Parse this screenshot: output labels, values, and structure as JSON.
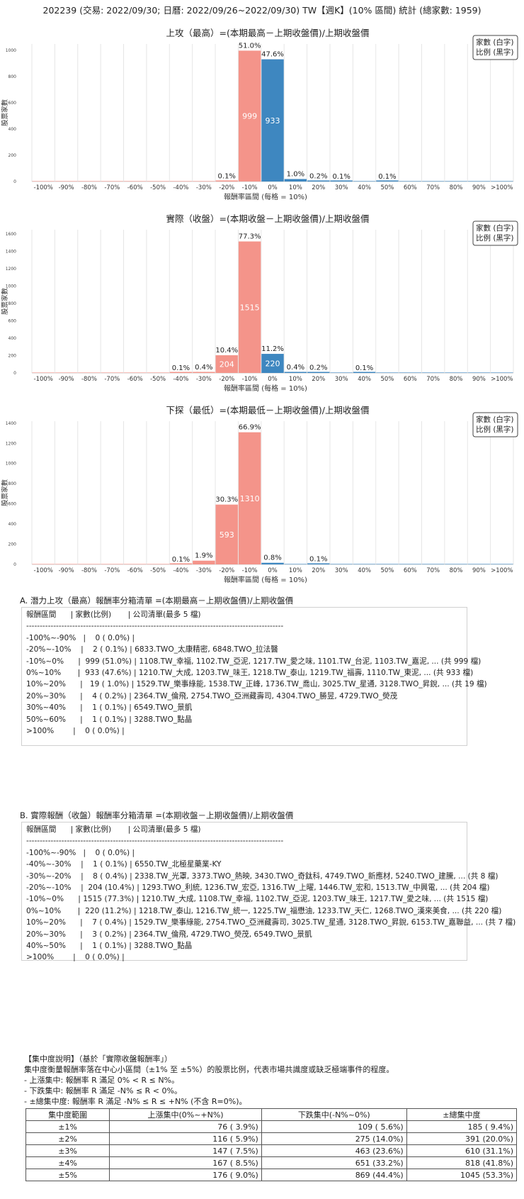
{
  "header": {
    "title": "202239 (交易: 2022/09/30; 日曆: 2022/09/26~2022/09/30) TW【週K】(10% 區間) 統計 (總家數: 1959)"
  },
  "colors": {
    "negative": "#F4948A",
    "positive": "#3E87C0",
    "grid": "#e6e6e6"
  },
  "chart_data": [
    {
      "type": "bar",
      "title": "上攻（最高）=(本期最高－上期收盤價)/上期收盤價",
      "legend": [
        "家數 (白字)",
        "比例 (黑字)"
      ],
      "legend_position": "top-right",
      "xlabel": "報酬率區間 (每格 = 10%)",
      "ylabel": "股票家數",
      "categories": [
        "-100%",
        "-90%",
        "-80%",
        "-70%",
        "-60%",
        "-50%",
        "-40%",
        "-30%",
        "-20%",
        "-10%",
        "0%",
        "10%",
        "20%",
        "30%",
        "40%",
        "50%",
        "60%",
        "70%",
        "80%",
        "90%",
        ">100%"
      ],
      "values": [
        0,
        0,
        0,
        0,
        0,
        0,
        0,
        0,
        2,
        999,
        933,
        19,
        4,
        1,
        0,
        1,
        0,
        0,
        0,
        0,
        0
      ],
      "pct_labels": [
        "",
        "",
        "",
        "",
        "",
        "",
        "",
        "",
        "0.1%",
        "51.0%",
        "47.6%",
        "1.0%",
        "0.2%",
        "0.1%",
        "",
        "0.1%",
        "",
        "",
        "",
        "",
        ""
      ],
      "yticks": [
        0,
        200,
        400,
        600,
        800,
        1000
      ],
      "ylim": [
        0,
        1050
      ]
    },
    {
      "type": "bar",
      "title": "實際（收盤）=(本期收盤－上期收盤價)/上期收盤價",
      "legend": [
        "家數 (白字)",
        "比例 (黑字)"
      ],
      "legend_position": "top-right",
      "xlabel": "報酬率區間 (每格 = 10%)",
      "ylabel": "股票家數",
      "categories": [
        "-100%",
        "-90%",
        "-80%",
        "-70%",
        "-60%",
        "-50%",
        "-40%",
        "-30%",
        "-20%",
        "-10%",
        "0%",
        "10%",
        "20%",
        "30%",
        "40%",
        "50%",
        "60%",
        "70%",
        "80%",
        "90%",
        ">100%"
      ],
      "values": [
        0,
        0,
        0,
        0,
        0,
        0,
        1,
        8,
        204,
        1515,
        220,
        7,
        3,
        0,
        1,
        0,
        0,
        0,
        0,
        0,
        0
      ],
      "pct_labels": [
        "",
        "",
        "",
        "",
        "",
        "",
        "0.1%",
        "0.4%",
        "10.4%",
        "77.3%",
        "11.2%",
        "0.4%",
        "0.2%",
        "",
        "0.1%",
        "",
        "",
        "",
        "",
        "",
        ""
      ],
      "yticks": [
        0,
        200,
        400,
        600,
        800,
        1000,
        1200,
        1400,
        1600
      ],
      "ylim": [
        0,
        1650
      ]
    },
    {
      "type": "bar",
      "title": "下探（最低）=(本期最低－上期收盤價)/上期收盤價",
      "legend": [
        "家數 (白字)",
        "比例 (黑字)"
      ],
      "legend_position": "top-right",
      "xlabel": "報酬率區間 (每格 = 10%)",
      "ylabel": "股票家數",
      "categories": [
        "-100%",
        "-90%",
        "-80%",
        "-70%",
        "-60%",
        "-50%",
        "-40%",
        "-30%",
        "-20%",
        "-10%",
        "0%",
        "10%",
        "20%",
        "30%",
        "40%",
        "50%",
        "60%",
        "70%",
        "80%",
        "90%",
        ">100%"
      ],
      "values": [
        0,
        0,
        0,
        0,
        0,
        0,
        1,
        37,
        593,
        1310,
        16,
        0,
        2,
        0,
        0,
        0,
        0,
        0,
        0,
        0,
        0
      ],
      "pct_labels": [
        "",
        "",
        "",
        "",
        "",
        "",
        "0.1%",
        "1.9%",
        "30.3%",
        "66.9%",
        "0.8%",
        "",
        "0.1%",
        "",
        "",
        "",
        "",
        "",
        "",
        "",
        ""
      ],
      "yticks": [
        0,
        200,
        400,
        600,
        800,
        1000,
        1200,
        1400
      ],
      "ylim": [
        0,
        1420
      ]
    }
  ],
  "section_a": {
    "title": "A. 潛力上攻（最高）報酬率分箱清單 =(本期最高－上期收盤價)/上期收盤價",
    "lines": [
      "報酬區間      | 家數(比例)       | 公司清單(最多 5 檔)",
      "-----------------------------------------------------------------------------------------------",
      "-100%~-90%   |    0 ( 0.0%) |",
      "-20%~-10%    |    2 ( 0.1%) | 6833.TWO_太康精密, 6848.TWO_拉法醫",
      "-10%~0%      |  999 (51.0%) | 1108.TW_幸福, 1102.TW_亞泥, 1217.TW_愛之味, 1101.TW_台泥, 1103.TW_嘉泥, ... (共 999 檔)",
      "0%~10%       |  933 (47.6%) | 1210.TW_大成, 1203.TW_味王, 1218.TW_泰山, 1219.TW_福壽, 1110.TW_東泥, ... (共 933 檔)",
      "10%~20%      |   19 ( 1.0%) | 1529.TW_樂事綠能, 1538.TW_正峰, 1736.TW_喬山, 3025.TW_星通, 3128.TWO_昇銳, ... (共 19 檔)",
      "20%~30%      |    4 ( 0.2%) | 2364.TW_倫飛, 2754.TWO_亞洲藏壽司, 4304.TWO_勝昱, 4729.TWO_熒茂",
      "30%~40%      |    1 ( 0.1%) | 6549.TWO_景凱",
      "50%~60%      |    1 ( 0.1%) | 3288.TWO_點晶",
      ">100%        |    0 ( 0.0%) |"
    ]
  },
  "section_b": {
    "title": "B. 實際報酬（收盤）報酬率分箱清單 =(本期收盤－上期收盤價)/上期收盤價",
    "lines": [
      "報酬區間      | 家數(比例)       | 公司清單(最多 5 檔)",
      "-----------------------------------------------------------------------------------------------",
      "-100%~-90%   |    0 ( 0.0%) |",
      "-40%~-30%    |    1 ( 0.1%) | 6550.TW_北極星藥業-KY",
      "-30%~-20%    |    8 ( 0.4%) | 2338.TW_光罩, 3373.TWO_熱映, 3430.TWO_奇鈦科, 4749.TWO_新應材, 5240.TWO_建騰, ... (共 8 檔)",
      "-20%~-10%    |  204 (10.4%) | 1293.TWO_利統, 1236.TW_宏亞, 1316.TW_上曜, 1446.TW_宏和, 1513.TW_中興電, ... (共 204 檔)",
      "-10%~0%      | 1515 (77.3%) | 1210.TW_大成, 1108.TW_幸福, 1102.TW_亞泥, 1203.TW_味王, 1217.TW_愛之味, ... (共 1515 檔)",
      "0%~10%       |  220 (11.2%) | 1218.TW_泰山, 1216.TW_統一, 1225.TW_福懋油, 1233.TW_天仁, 1268.TWO_漢來美食, ... (共 220 檔)",
      "10%~20%      |    7 ( 0.4%) | 1529.TW_樂事綠能, 2754.TWO_亞洲藏壽司, 3025.TW_星通, 3128.TWO_昇銳, 6153.TW_嘉聯益, ... (共 7 檔)",
      "20%~30%      |    3 ( 0.2%) | 2364.TW_倫飛, 4729.TWO_熒茂, 6549.TWO_景凱",
      "40%~50%      |    1 ( 0.1%) | 3288.TWO_點晶",
      ">100%        |    0 ( 0.0%) |"
    ]
  },
  "concentration": {
    "lines": [
      "【集中度說明】（基於「實際收盤報酬率」）",
      "集中度衡量報酬率落在中心小區間（±1% 至 ±5%）的股票比例，代表市場共識度或缺乏極端事件的程度。",
      " - 上漲集中: 報酬率 R 滿足 0% < R ≤ N%。",
      " - 下跌集中: 報酬率 R 滿足 -N% ≤ R < 0%。",
      " - ±總集中度: 報酬率 R 滿足 -N% ≤ R ≤ +N% (不含 R=0%)。"
    ],
    "table": {
      "headers": [
        "集中度範圍",
        "上漲集中(0%~+N%)",
        "下跌集中(-N%~0%)",
        "±總集中度"
      ],
      "rows": [
        [
          "±1%",
          "76 ( 3.9%)",
          "109 ( 5.6%)",
          "185 ( 9.4%)"
        ],
        [
          "±2%",
          "116 ( 5.9%)",
          "275 (14.0%)",
          "391 (20.0%)"
        ],
        [
          "±3%",
          "147 ( 7.5%)",
          "463 (23.6%)",
          "610 (31.1%)"
        ],
        [
          "±4%",
          "167 ( 8.5%)",
          "651 (33.2%)",
          "818 (41.8%)"
        ],
        [
          "±5%",
          "176 ( 9.0%)",
          "869 (44.4%)",
          "1045 (53.3%)"
        ]
      ]
    }
  }
}
